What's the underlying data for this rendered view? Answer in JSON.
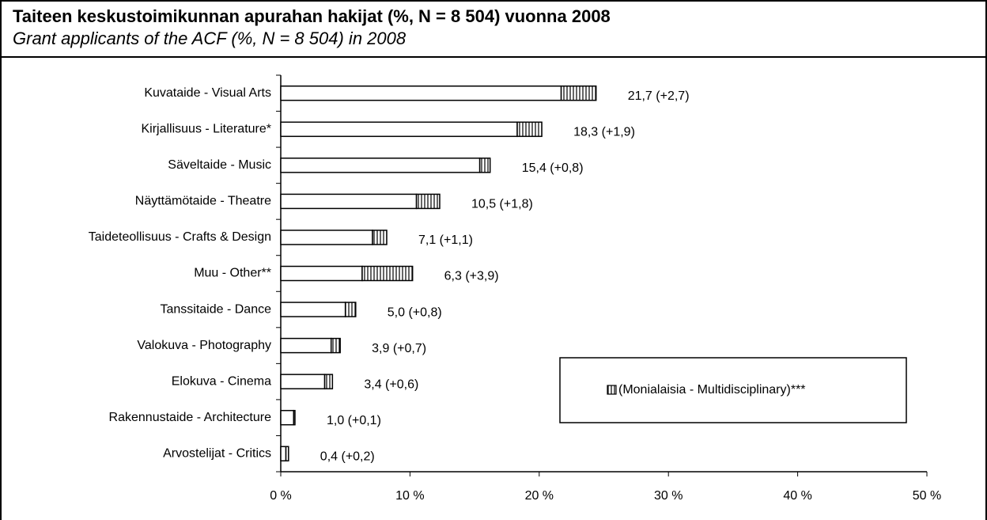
{
  "chart_data": {
    "type": "bar",
    "orientation": "horizontal",
    "stacked": true,
    "title": "Taiteen keskustoimikunnan apurahan hakijat (%, N = 8 504) vuonna 2008",
    "subtitle": "Grant applicants of the ACF (%, N = 8 504) in 2008",
    "categories": [
      "Kuvataide - Visual Arts",
      "Kirjallisuus - Literature*",
      "Säveltaide - Music",
      "Näyttämötaide - Theatre",
      "Taideteollisuus - Crafts & Design",
      "Muu - Other**",
      "Tanssitaide - Dance",
      "Valokuva - Photography",
      "Elokuva - Cinema",
      "Rakennustaide - Architecture",
      "Arvostelijat - Critics"
    ],
    "series": [
      {
        "color": "#ffffff",
        "values": [
          21.7,
          18.3,
          15.4,
          10.5,
          7.1,
          6.3,
          5.0,
          3.9,
          3.4,
          1.0,
          0.4
        ],
        "value_labels": [
          "21,7 (+2,7)",
          "18,3 (+1,9)",
          "15,4 (+0,8)",
          "10,5 (+1,8)",
          "7,1 (+1,1)",
          "6,3 (+3,9)",
          "5,0 (+0,8)",
          "3,9 (+0,7)",
          "3,4 (+0,6)",
          "1,0 (+0,1)",
          "0,4 (+0,2)"
        ]
      },
      {
        "name": "(Monialaisia - Multidisciplinary)***",
        "color": "#000000",
        "pattern": "vertical-hatch",
        "values": [
          2.7,
          1.9,
          0.8,
          1.8,
          1.1,
          3.9,
          0.8,
          0.7,
          0.6,
          0.1,
          0.2
        ]
      }
    ],
    "xlim": [
      0,
      50
    ],
    "xticks": [
      {
        "value": 0,
        "label": "0 %"
      },
      {
        "value": 10,
        "label": "10 %"
      },
      {
        "value": 20,
        "label": "20 %"
      },
      {
        "value": 30,
        "label": "30 %"
      },
      {
        "value": 40,
        "label": "40 %"
      },
      {
        "value": 50,
        "label": "50 %"
      }
    ],
    "grid": false,
    "legend": "lower-right"
  }
}
